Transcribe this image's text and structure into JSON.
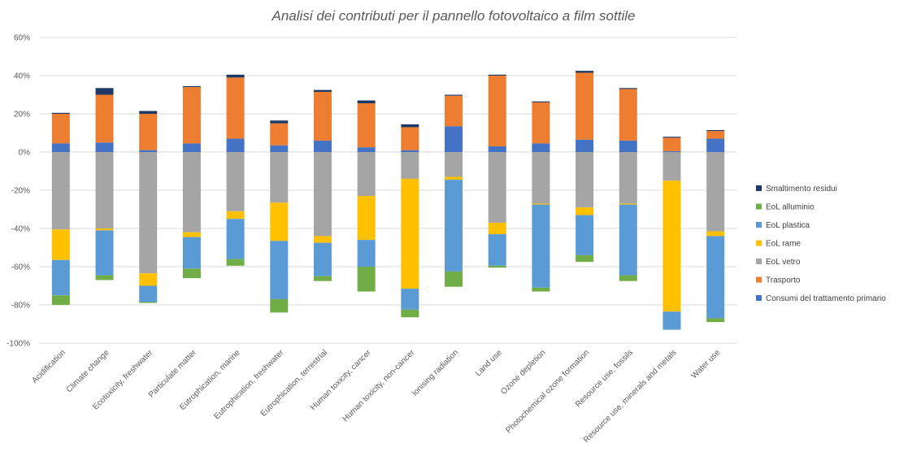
{
  "chart_data": {
    "type": "bar",
    "stacked": true,
    "title": "Analisi dei contributi per il pannello fotovoltaico a film sottile",
    "xlabel": "",
    "ylabel": "",
    "ylim": [
      -100,
      60
    ],
    "yticks": [
      60,
      40,
      20,
      0,
      -20,
      -40,
      -60,
      -80,
      -100
    ],
    "ytick_labels": [
      "60%",
      "40%",
      "20%",
      "0%",
      "-20%",
      "-40%",
      "-60%",
      "-80%",
      "-100%"
    ],
    "grid": true,
    "legend_position": "right",
    "categories": [
      "Acidification",
      "Climate change",
      "Ecotoxicity, freshwater",
      "Particulate matter",
      "Eutrophication, marine",
      "Eutrophication, freshwater",
      "Eutrophication, terrestrial",
      "Human toxicity, cancer",
      "Human toxicity, non-cancer",
      "Ionising radiation",
      "Land use",
      "Ozone depletion",
      "Photochemical ozone formation",
      "Resource use, fossils",
      "Resource use, minerals and metals",
      "Water use"
    ],
    "stack_order": [
      "Consumi del trattamento primario",
      "Trasporto",
      "EoL vetro",
      "EoL rame",
      "EoL plastica",
      "EoL alluminio",
      "Smaltimento residui"
    ],
    "legend_order": [
      "Smaltimento residui",
      "EoL alluminio",
      "EoL plastica",
      "EoL rame",
      "EoL vetro",
      "Trasporto",
      "Consumi del trattamento primario"
    ],
    "series": [
      {
        "name": "Consumi del trattamento primario",
        "color": "#4472c4",
        "values": [
          4.5,
          5,
          1,
          4.5,
          7,
          3.5,
          6,
          2.5,
          1,
          13.5,
          3,
          4.5,
          6.5,
          6,
          0.5,
          7
        ]
      },
      {
        "name": "Trasporto",
        "color": "#ed7d31",
        "values": [
          15.5,
          25,
          19,
          29.5,
          32,
          11.5,
          25.5,
          23,
          12,
          16,
          37,
          21.5,
          35,
          27,
          7,
          4
        ]
      },
      {
        "name": "EoL vetro",
        "color": "#a5a5a5",
        "values": [
          -40.5,
          -40,
          -63.5,
          -42,
          -31,
          -26.5,
          -44,
          -23,
          -14,
          -13,
          -37,
          -27,
          -29,
          -27,
          -15,
          -41.5
        ]
      },
      {
        "name": "EoL rame",
        "color": "#ffc000",
        "values": [
          -16,
          -1,
          -6.5,
          -2.5,
          -4,
          -20,
          -3.5,
          -23,
          -57.5,
          -1.5,
          -6,
          -0.5,
          -4,
          -0.5,
          -68.5,
          -2.5
        ]
      },
      {
        "name": "EoL plastica",
        "color": "#5b9bd5",
        "values": [
          -18.5,
          -23.5,
          -8.5,
          -16.5,
          -21,
          -30.5,
          -17.5,
          -14,
          -11,
          -48,
          -16.5,
          -43.5,
          -21,
          -37,
          -9.5,
          -43
        ]
      },
      {
        "name": "EoL alluminio",
        "color": "#70ad47",
        "values": [
          -5,
          -2.5,
          -0.5,
          -5,
          -3.5,
          -7,
          -2.5,
          -13,
          -4,
          -8,
          -1,
          -2,
          -3.5,
          -3,
          0,
          -2
        ]
      },
      {
        "name": "Smaltimento residui",
        "color": "#203864",
        "values": [
          0.5,
          3.5,
          1.5,
          0.5,
          1.5,
          1.5,
          1,
          1.5,
          1.5,
          0.5,
          0.5,
          0.5,
          1,
          0.5,
          0.5,
          0.5
        ]
      }
    ]
  }
}
